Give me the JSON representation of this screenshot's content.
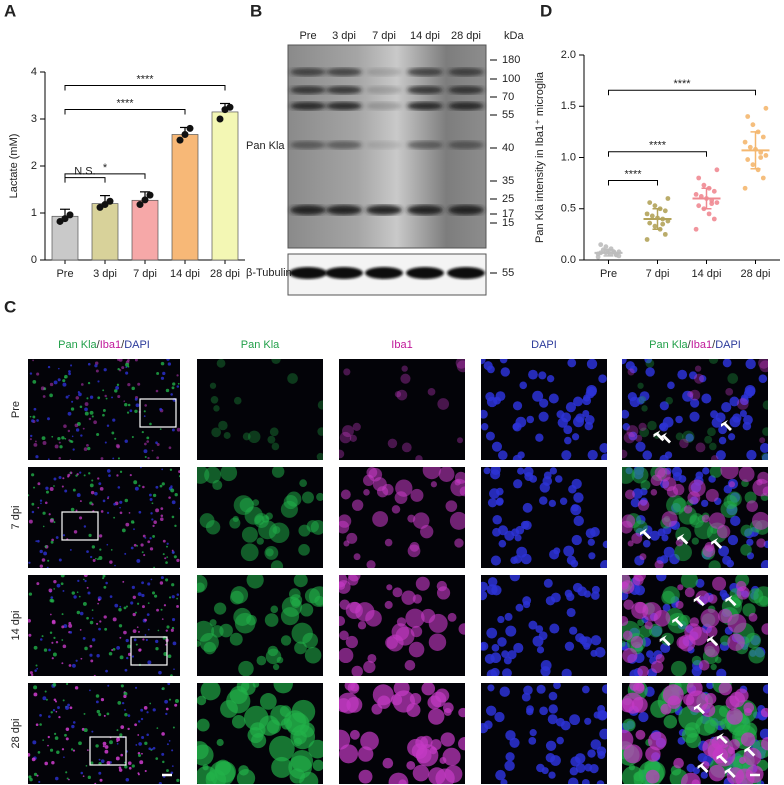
{
  "chart_data": [
    {
      "type": "bar",
      "panel": "A",
      "y_label": "Lactate (mM)",
      "categories": [
        "Pre",
        "3 dpi",
        "7 dpi",
        "14 dpi",
        "28 dpi"
      ],
      "values": [
        0.93,
        1.2,
        1.27,
        2.67,
        3.15
      ],
      "errors": [
        0.15,
        0.17,
        0.18,
        0.15,
        0.18
      ],
      "points": [
        [
          0.82,
          0.88,
          0.96
        ],
        [
          1.12,
          1.18,
          1.25
        ],
        [
          1.18,
          1.28,
          1.38
        ],
        [
          2.55,
          2.67,
          2.8
        ],
        [
          3.0,
          3.2,
          3.25
        ]
      ],
      "colors": [
        "#c9c9c9",
        "#d8d29a",
        "#f6a8a8",
        "#f7b877",
        "#f3f7b4"
      ],
      "ylim": [
        0,
        4
      ],
      "yticks": [
        0,
        1,
        2,
        3,
        4
      ],
      "significance": [
        {
          "from": 0,
          "to": 1,
          "label": "N.S."
        },
        {
          "from": 0,
          "to": 2,
          "label": "*"
        },
        {
          "from": 0,
          "to": 3,
          "label": "****"
        },
        {
          "from": 0,
          "to": 4,
          "label": "****"
        }
      ]
    },
    {
      "type": "strip",
      "panel": "D",
      "y_label": "Pan Kla intensity in Iba1⁺ microglia",
      "categories": [
        "Pre",
        "7 dpi",
        "14 dpi",
        "28 dpi"
      ],
      "series": [
        {
          "color": "#bdbdbd",
          "values": [
            0.03,
            0.05,
            0.06,
            0.07,
            0.07,
            0.08,
            0.08,
            0.09,
            0.1,
            0.06,
            0.05,
            0.11,
            0.13,
            0.15,
            0.04,
            0.08
          ]
        },
        {
          "color": "#b3a35a",
          "values": [
            0.2,
            0.25,
            0.3,
            0.33,
            0.36,
            0.38,
            0.4,
            0.41,
            0.43,
            0.45,
            0.48,
            0.5,
            0.53,
            0.56,
            0.6,
            0.35
          ]
        },
        {
          "color": "#ef8a92",
          "values": [
            0.3,
            0.4,
            0.45,
            0.5,
            0.53,
            0.56,
            0.58,
            0.6,
            0.62,
            0.64,
            0.67,
            0.7,
            0.73,
            0.8,
            0.88,
            0.55
          ]
        },
        {
          "color": "#f4b76f",
          "values": [
            0.7,
            0.8,
            0.88,
            0.93,
            0.98,
            1.02,
            1.05,
            1.08,
            1.1,
            1.15,
            1.2,
            1.25,
            1.32,
            1.4,
            1.48,
            1.0
          ]
        }
      ],
      "means": [
        0.07,
        0.4,
        0.6,
        1.07
      ],
      "sd": [
        0.03,
        0.1,
        0.1,
        0.18
      ],
      "ylim": [
        0,
        2
      ],
      "yticks": [
        {
          "value": 0,
          "label": "0.0"
        },
        0.5,
        {
          "value": 1,
          "label": "1.0"
        },
        1.5,
        {
          "value": 2,
          "label": "2.0"
        }
      ],
      "significance": [
        {
          "from": 0,
          "to": 1,
          "label": "****"
        },
        {
          "from": 0,
          "to": 2,
          "label": "****"
        },
        {
          "from": 0,
          "to": 3,
          "label": "****"
        }
      ]
    }
  ],
  "blot": {
    "panel": "B",
    "lanes": [
      "Pre",
      "3 dpi",
      "7 dpi",
      "14 dpi",
      "28 dpi"
    ],
    "unit": "kDa",
    "markers": [
      "180",
      "100",
      "70",
      "55",
      "40",
      "35",
      "25",
      "17",
      "15"
    ],
    "antibodies": [
      "Pan Kla",
      "β-Tubulin"
    ],
    "loading_marker": "55"
  },
  "micrographs": {
    "panel": "C",
    "columns": [
      [
        {
          "text": "Pan Kla",
          "color": "#22a04a"
        },
        {
          "text": "/",
          "color": "#333333"
        },
        {
          "text": "Iba1",
          "color": "#c0189a"
        },
        {
          "text": "/",
          "color": "#333333"
        },
        {
          "text": "DAPI",
          "color": "#2b3a9a"
        }
      ],
      [
        {
          "text": "Pan Kla",
          "color": "#22a04a"
        }
      ],
      [
        {
          "text": "Iba1",
          "color": "#c0189a"
        }
      ],
      [
        {
          "text": "DAPI",
          "color": "#2b3a9a"
        }
      ],
      [
        {
          "text": "Pan Kla",
          "color": "#22a04a"
        },
        {
          "text": "/",
          "color": "#333333"
        },
        {
          "text": "Iba1",
          "color": "#c0189a"
        },
        {
          "text": "/",
          "color": "#333333"
        },
        {
          "text": "DAPI",
          "color": "#2b3a9a"
        }
      ]
    ],
    "rows": [
      "Pre",
      "7 dpi",
      "14 dpi",
      "28 dpi"
    ]
  }
}
